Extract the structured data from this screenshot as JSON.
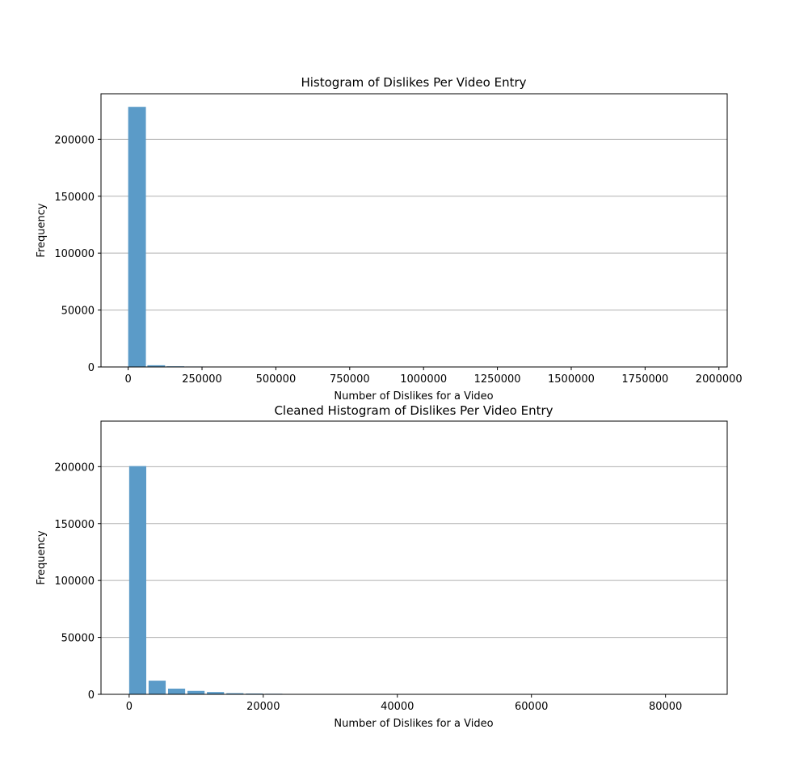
{
  "chart_data": [
    {
      "type": "bar",
      "title": "Histogram of Dislikes Per Video Entry",
      "xlabel": "Number of Dislikes for a Video",
      "ylabel": "Frequency",
      "xlim": [
        -92000,
        2028000
      ],
      "ylim": [
        0,
        240000
      ],
      "xticks": [
        0,
        250000,
        500000,
        750000,
        1000000,
        1250000,
        1500000,
        1750000,
        2000000
      ],
      "yticks": [
        0,
        50000,
        100000,
        150000,
        200000
      ],
      "grid": "y",
      "bar_color": "#5b9bc8",
      "bins": [
        {
          "x0": 0,
          "x1": 60000,
          "value": 228500
        },
        {
          "x0": 65000,
          "x1": 125000,
          "value": 1500
        },
        {
          "x0": 130000,
          "x1": 190000,
          "value": 600
        },
        {
          "x0": 195000,
          "x1": 255000,
          "value": 400
        },
        {
          "x0": 325000,
          "x1": 385000,
          "value": 300
        }
      ]
    },
    {
      "type": "bar",
      "title": "Cleaned Histogram of Dislikes Per Video Entry",
      "xlabel": "Number of Dislikes for a Video",
      "ylabel": "Frequency",
      "xlim": [
        -4200,
        89200
      ],
      "ylim": [
        0,
        240000
      ],
      "xticks": [
        0,
        20000,
        40000,
        60000,
        80000
      ],
      "yticks": [
        0,
        50000,
        100000,
        150000,
        200000
      ],
      "grid": "y",
      "bar_color": "#5b9bc8",
      "bins": [
        {
          "x0": 0,
          "x1": 2550,
          "value": 200500
        },
        {
          "x0": 2900,
          "x1": 5450,
          "value": 12000
        },
        {
          "x0": 5800,
          "x1": 8350,
          "value": 5000
        },
        {
          "x0": 8700,
          "x1": 11250,
          "value": 3000
        },
        {
          "x0": 11600,
          "x1": 14150,
          "value": 2000
        },
        {
          "x0": 14500,
          "x1": 17050,
          "value": 1000
        },
        {
          "x0": 17400,
          "x1": 19950,
          "value": 700
        },
        {
          "x0": 20300,
          "x1": 22850,
          "value": 500
        },
        {
          "x0": 23200,
          "x1": 25750,
          "value": 300
        }
      ]
    }
  ]
}
